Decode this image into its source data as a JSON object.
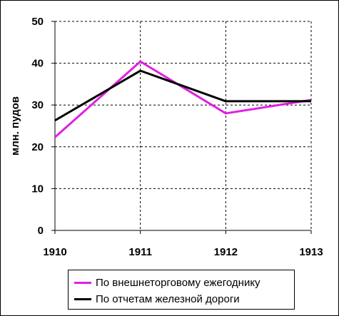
{
  "chart_data": {
    "type": "line",
    "x": [
      "1910",
      "1911",
      "1912",
      "1913"
    ],
    "ylabel": "млн. пудов",
    "xlabel": "",
    "ylim": [
      0,
      50
    ],
    "yticks": [
      "0",
      "10",
      "20",
      "30",
      "40",
      "50"
    ],
    "grid": true,
    "legend_position": "bottom",
    "series": [
      {
        "name": "По внешнеторговому ежегоднику",
        "color": "#e020e0",
        "values": [
          22.3,
          40.4,
          28.0,
          31.2
        ]
      },
      {
        "name": "По отчетам железной дороги",
        "color": "#000000",
        "values": [
          26.3,
          38.2,
          30.9,
          30.9
        ]
      }
    ]
  }
}
